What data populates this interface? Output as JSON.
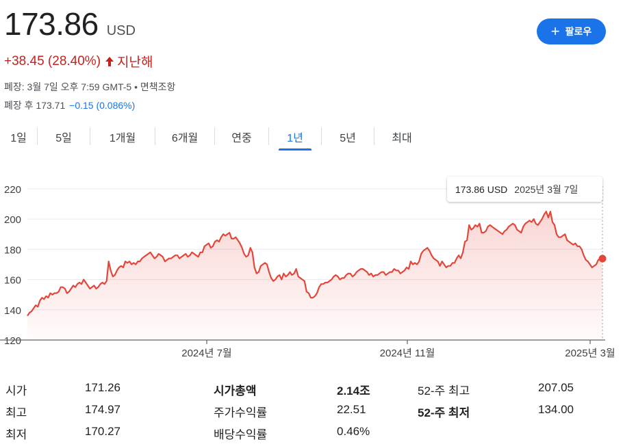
{
  "quote": {
    "price": "173.86",
    "currency": "USD",
    "change": "+38.45 (28.40%)",
    "period": "지난해",
    "close_info": "폐장: 3월 7일 오후 7:59 GMT-5 • 면책조항",
    "after_hours_label": "폐장 후 173.71",
    "after_hours_change": "−0.15 (0.086%)"
  },
  "follow_button": {
    "label": "팔로우"
  },
  "tabs": [
    "1일",
    "5일",
    "1개월",
    "6개월",
    "연중",
    "1년",
    "5년",
    "최대"
  ],
  "active_tab": "1년",
  "tooltip": {
    "price": "173.86 USD",
    "date": "2025년 3월 7일"
  },
  "chart_data": {
    "type": "area",
    "ylim": [
      120,
      220
    ],
    "yticks": [
      "220",
      "200",
      "180",
      "160",
      "140",
      "120"
    ],
    "xticks": [
      "2024년 7월",
      "2024년 11월",
      "2025년 3월"
    ],
    "series": [
      {
        "values": [
          136,
          138,
          139,
          141,
          143,
          142,
          146,
          148,
          147,
          149,
          148,
          151,
          150,
          151,
          151,
          152,
          155,
          155,
          154,
          151,
          152,
          154,
          156,
          155,
          157,
          158,
          157,
          160,
          158,
          156,
          154,
          155,
          156,
          154,
          155,
          157,
          158,
          157,
          159,
          172,
          166,
          162,
          163,
          166,
          168,
          169,
          168,
          172,
          171,
          172,
          170,
          171,
          170,
          172,
          172,
          174,
          175,
          176,
          177,
          178,
          176,
          174,
          175,
          177,
          176,
          175,
          172,
          173,
          174,
          174,
          175,
          176,
          176,
          174,
          175,
          176,
          177,
          175,
          176,
          178,
          177,
          176,
          175,
          178,
          178,
          182,
          183,
          184,
          181,
          182,
          185,
          186,
          185,
          188,
          190,
          189,
          190,
          191,
          187,
          187,
          188,
          186,
          184,
          181,
          177,
          175,
          176,
          181,
          178,
          168,
          164,
          165,
          169,
          170,
          171,
          170,
          165,
          161,
          159,
          160,
          162,
          163,
          160,
          164,
          162,
          163,
          165,
          163,
          164,
          167,
          162,
          161,
          160,
          159,
          152,
          151,
          148,
          148,
          149,
          151,
          155,
          157,
          157,
          158,
          158,
          159,
          160,
          162,
          163,
          162,
          160,
          161,
          161,
          163,
          164,
          164,
          162,
          163,
          165,
          166,
          167,
          167,
          166,
          165,
          163,
          164,
          162,
          163,
          163,
          164,
          165,
          165,
          163,
          164,
          165,
          165,
          167,
          166,
          166,
          164,
          165,
          166,
          168,
          167,
          172,
          170,
          171,
          170,
          172,
          177,
          179,
          180,
          181,
          179,
          176,
          174,
          173,
          172,
          169,
          172,
          170,
          168,
          169,
          169,
          171,
          171,
          174,
          176,
          174,
          178,
          185,
          186,
          196,
          193,
          194,
          196,
          195,
          197,
          191,
          191,
          192,
          195,
          196,
          195,
          194,
          193,
          192,
          191,
          190,
          192,
          193,
          195,
          196,
          197,
          196,
          193,
          192,
          191,
          195,
          197,
          198,
          199,
          198,
          200,
          197,
          196,
          198,
          200,
          203,
          205,
          201,
          205,
          198,
          196,
          190,
          188,
          188,
          189,
          190,
          186,
          185,
          184,
          183,
          184,
          182,
          182,
          180,
          176,
          173,
          172,
          170,
          168,
          169,
          170,
          173,
          174,
          173.86
        ]
      }
    ]
  },
  "stats": {
    "rows": [
      {
        "l1": "시가",
        "v1": "171.26",
        "l2": "시가총액",
        "v2": "2.14조",
        "l3": "52-주 최고",
        "v3": "207.05"
      },
      {
        "l1": "최고",
        "v1": "174.97",
        "l2": "주가수익률",
        "v2": "22.51",
        "l3": "52-주 최저",
        "v3": "134.00"
      },
      {
        "l1": "최저",
        "v1": "170.27",
        "l2": "배당수익률",
        "v2": "0.46%",
        "l3": "",
        "v3": ""
      }
    ]
  },
  "colors": {
    "line": "#e3463a",
    "accent": "#1a73e8",
    "negative": "#c5221f",
    "grid": "#e8eaed"
  }
}
